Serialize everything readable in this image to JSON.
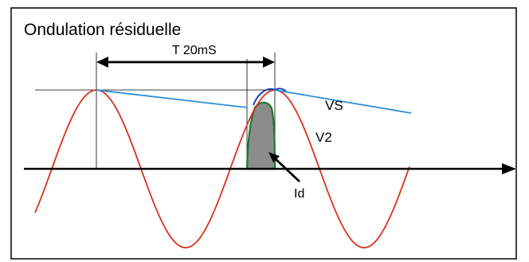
{
  "title": "Ondulation résiduelle",
  "labels": {
    "period": "T 20mS",
    "vs": "VS",
    "v2": "V2",
    "id": "Id"
  },
  "colors": {
    "sine": "#d8321e",
    "vs_line": "#2b8fd6",
    "diode_fill": "#8c8c8c",
    "diode_edge": "#1a7a2a",
    "arc": "#1f3fbf",
    "ink": "#000000"
  }
}
